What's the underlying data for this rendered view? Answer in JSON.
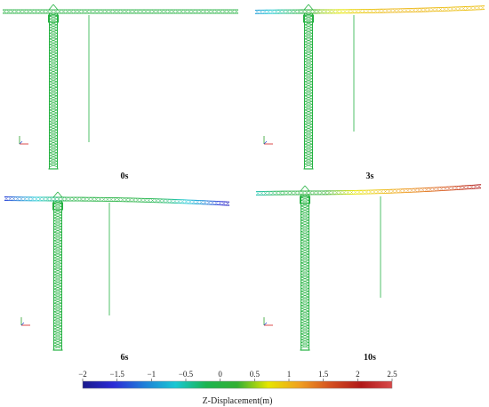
{
  "figure": {
    "panels": [
      {
        "time_label": "0s",
        "color_stops": [
          0,
          0,
          0,
          0,
          0,
          0,
          0,
          0
        ],
        "hook_offset": 0
      },
      {
        "time_label": "3s",
        "color_stops": [
          -0.9,
          -0.3,
          0.5,
          0.85,
          1.0,
          1.0,
          0.95,
          0.95
        ],
        "hook_offset": 0
      },
      {
        "time_label": "6s",
        "color_stops": [
          -1.4,
          -0.6,
          -0.05,
          0,
          0,
          -0.3,
          -0.9,
          -1.8
        ],
        "hook_offset": 1
      },
      {
        "time_label": "10s",
        "color_stops": [
          -0.5,
          0,
          0.2,
          0.7,
          1.0,
          1.3,
          1.6,
          2.1
        ],
        "hook_offset": 2
      }
    ],
    "colorbar": {
      "title": "Z-Displacement(m)",
      "min": -2,
      "max": 2.5,
      "ticks": [
        "−2",
        "−1.5",
        "−1",
        "−0.5",
        "0",
        "0.5",
        "1",
        "1.5",
        "2",
        "2.5"
      ],
      "colors": [
        "#1a1a8c",
        "#2b2bd6",
        "#1f7fd8",
        "#18c7d3",
        "#1bb44f",
        "#33b033",
        "#e6e600",
        "#f0a020",
        "#d45020",
        "#b01818",
        "#d84a4a"
      ]
    }
  }
}
